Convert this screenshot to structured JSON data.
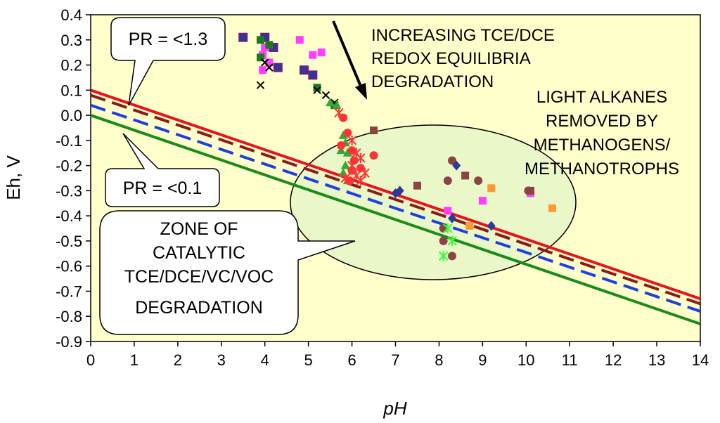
{
  "chart_data": {
    "type": "scatter",
    "title": "",
    "xlabel": "pH",
    "ylabel": "Eh, V",
    "xlim": [
      0,
      14
    ],
    "ylim": [
      -0.9,
      0.4
    ],
    "x_ticks": [
      "0",
      "1",
      "2",
      "3",
      "4",
      "5",
      "6",
      "7",
      "8",
      "9",
      "10",
      "11",
      "12",
      "13",
      "14"
    ],
    "y_ticks": [
      "0.4",
      "0.3",
      "0.2",
      "0.1",
      "0.0",
      "-0.1",
      "-0.2",
      "-0.3",
      "-0.4",
      "-0.5",
      "-0.6",
      "-0.7",
      "-0.8",
      "-0.9"
    ],
    "lines": [
      {
        "name": "red-line",
        "color": "#e8141c",
        "dash": "solid",
        "x": [
          0,
          14
        ],
        "y": [
          0.1,
          -0.73
        ]
      },
      {
        "name": "brown-dash-line",
        "color": "#8b1a1a",
        "dash": "dashed",
        "x": [
          0,
          14
        ],
        "y": [
          0.08,
          -0.75
        ]
      },
      {
        "name": "blue-dash-line",
        "color": "#1f3fe0",
        "dash": "dashed",
        "x": [
          0,
          14
        ],
        "y": [
          0.04,
          -0.78
        ]
      },
      {
        "name": "green-line",
        "color": "#1a8c1a",
        "dash": "solid",
        "x": [
          0,
          14
        ],
        "y": [
          0.0,
          -0.83
        ]
      }
    ],
    "series": [
      {
        "name": "navy-squares",
        "marker": "square",
        "color": "#2b3a9a",
        "edge": "#7a1a7a",
        "points": [
          [
            3.5,
            0.31
          ],
          [
            4.0,
            0.31
          ],
          [
            4.2,
            0.27
          ],
          [
            4.3,
            0.19
          ],
          [
            4.9,
            0.18
          ],
          [
            5.1,
            0.16
          ]
        ]
      },
      {
        "name": "magenta-squares",
        "marker": "square",
        "color": "#ff3fff",
        "points": [
          [
            4.8,
            0.3
          ],
          [
            4.0,
            0.27
          ],
          [
            3.95,
            0.24
          ],
          [
            4.1,
            0.21
          ],
          [
            3.95,
            0.18
          ],
          [
            5.1,
            0.24
          ],
          [
            5.3,
            0.25
          ],
          [
            8.2,
            -0.38
          ],
          [
            9.0,
            -0.34
          ],
          [
            10.1,
            -0.31
          ]
        ]
      },
      {
        "name": "green-squares",
        "marker": "square",
        "color": "#1f7a1f",
        "points": [
          [
            3.9,
            0.3
          ],
          [
            4.1,
            0.28
          ],
          [
            3.9,
            0.23
          ],
          [
            5.2,
            0.11
          ],
          [
            5.6,
            0.04
          ]
        ]
      },
      {
        "name": "black-crosses",
        "marker": "x",
        "color": "#000000",
        "points": [
          [
            4.0,
            0.21
          ],
          [
            4.1,
            0.19
          ],
          [
            3.9,
            0.12
          ],
          [
            5.2,
            0.1
          ],
          [
            5.4,
            0.08
          ],
          [
            5.6,
            0.05
          ]
        ]
      },
      {
        "name": "green-triangles",
        "marker": "triangle",
        "color": "#33a833",
        "points": [
          [
            5.5,
            0.05
          ],
          [
            5.65,
            0.04
          ],
          [
            5.8,
            -0.08
          ],
          [
            5.85,
            -0.11
          ],
          [
            5.9,
            -0.15
          ],
          [
            5.75,
            -0.14
          ],
          [
            5.85,
            -0.2
          ],
          [
            5.8,
            -0.23
          ],
          [
            5.9,
            -0.26
          ]
        ]
      },
      {
        "name": "red-circles",
        "marker": "circle",
        "color": "#ff3333",
        "points": [
          [
            5.8,
            -0.01
          ],
          [
            5.9,
            -0.07
          ],
          [
            5.75,
            -0.12
          ],
          [
            6.0,
            -0.14
          ],
          [
            6.05,
            -0.18
          ],
          [
            6.0,
            -0.22
          ],
          [
            6.2,
            -0.21
          ],
          [
            6.5,
            -0.16
          ],
          [
            5.95,
            -0.26
          ]
        ]
      },
      {
        "name": "red-asterisks",
        "marker": "asterisk",
        "color": "#ff3333",
        "points": [
          [
            5.7,
            0.01
          ],
          [
            6.0,
            -0.1
          ],
          [
            6.1,
            -0.15
          ],
          [
            6.2,
            -0.17
          ],
          [
            6.0,
            -0.2
          ],
          [
            6.1,
            -0.24
          ],
          [
            6.3,
            -0.23
          ],
          [
            6.2,
            -0.26
          ],
          [
            5.85,
            -0.25
          ]
        ]
      },
      {
        "name": "brown-squares",
        "marker": "square",
        "color": "#8b4444",
        "points": [
          [
            6.5,
            -0.06
          ],
          [
            7.5,
            -0.28
          ],
          [
            8.6,
            -0.24
          ],
          [
            10.1,
            -0.3
          ]
        ]
      },
      {
        "name": "brown-circles",
        "marker": "circle",
        "color": "#8b4444",
        "points": [
          [
            8.3,
            -0.18
          ],
          [
            8.2,
            -0.26
          ],
          [
            8.9,
            -0.26
          ],
          [
            8.1,
            -0.45
          ],
          [
            8.1,
            -0.5
          ],
          [
            8.3,
            -0.56
          ],
          [
            10.05,
            -0.3
          ]
        ]
      },
      {
        "name": "blue-diamonds",
        "marker": "diamond",
        "color": "#2b3a9a",
        "points": [
          [
            7.0,
            -0.31
          ],
          [
            7.1,
            -0.3
          ],
          [
            8.3,
            -0.41
          ],
          [
            9.2,
            -0.44
          ],
          [
            8.4,
            -0.2
          ]
        ]
      },
      {
        "name": "orange-squares",
        "marker": "square",
        "color": "#ff9933",
        "points": [
          [
            9.2,
            -0.29
          ],
          [
            8.7,
            -0.44
          ],
          [
            10.6,
            -0.37
          ]
        ]
      },
      {
        "name": "green-asterisks",
        "marker": "asterisk",
        "color": "#33ff33",
        "points": [
          [
            8.2,
            -0.45
          ],
          [
            8.3,
            -0.5
          ],
          [
            8.1,
            -0.56
          ]
        ]
      }
    ],
    "annotations": {
      "top_right": [
        "INCREASING TCE/DCE",
        "REDOX EQUILIBRIA",
        "DEGRADATION"
      ],
      "right": [
        "LIGHT ALKANES",
        "REMOVED BY",
        "METHANOGENS/",
        "METHANOTROPHS"
      ],
      "callout_pr_high": "PR = <1.3",
      "callout_pr_low": "PR = <0.1",
      "callout_zone": [
        "ZONE OF",
        "CATALYTIC",
        "TCE/DCE/VC/VOC",
        "DEGRADATION"
      ]
    },
    "colors": {
      "plot_background": "#ffffcc",
      "ellipse_fill": "#eaf7c8"
    }
  }
}
